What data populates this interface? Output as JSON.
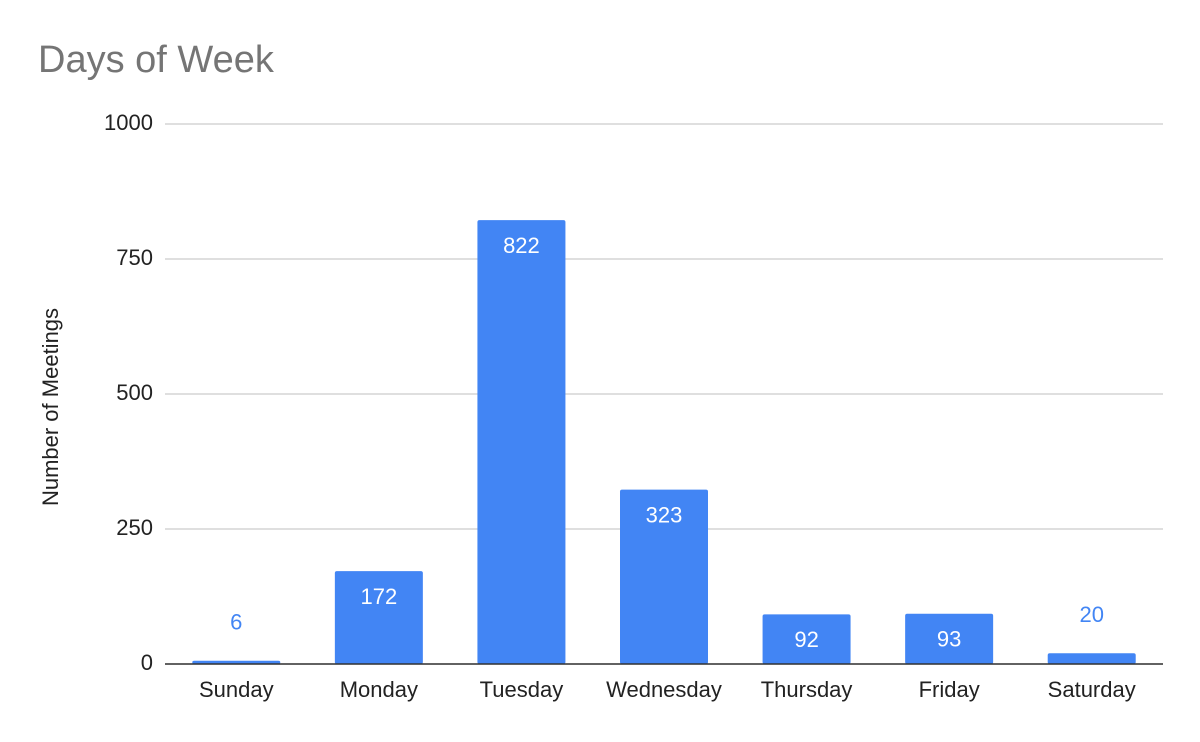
{
  "chart_data": {
    "type": "bar",
    "title": "Days of Week",
    "y_label": "Number of Meetings",
    "categories": [
      "Sunday",
      "Monday",
      "Tuesday",
      "Wednesday",
      "Thursday",
      "Friday",
      "Saturday"
    ],
    "values": [
      6,
      172,
      822,
      323,
      92,
      93,
      20
    ],
    "color": "#4285f4",
    "ylim": [
      0,
      1000
    ],
    "yticks": [
      0,
      250,
      500,
      750,
      1000
    ],
    "grid": true,
    "data_labels": true
  }
}
